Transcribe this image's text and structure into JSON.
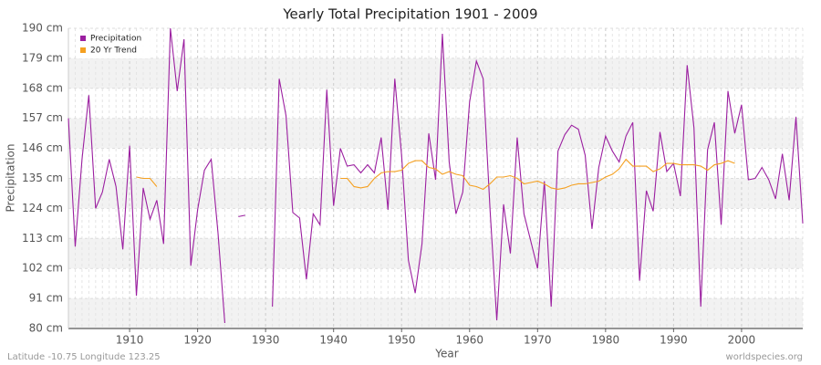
{
  "chart_data": {
    "type": "line",
    "title": "Yearly Total Precipitation 1901 - 2009",
    "x_label": "Year",
    "y_label": "Precipitation",
    "annotations": [
      "Latitude -10.75 Longitude 123.25",
      "worldspecies.org"
    ],
    "legend": "top-left",
    "grid": true,
    "xlim": [
      1901,
      2009
    ],
    "xticks": [
      1910,
      1920,
      1930,
      1940,
      1950,
      1960,
      1970,
      1980,
      1990,
      2000
    ],
    "ylim": [
      80,
      190
    ],
    "yticks": [
      {
        "value": 80,
        "label": "80 cm"
      },
      {
        "value": 91,
        "label": "91 cm"
      },
      {
        "value": 102,
        "label": "102 cm"
      },
      {
        "value": 113,
        "label": "113 cm"
      },
      {
        "value": 124,
        "label": "124 cm"
      },
      {
        "value": 135,
        "label": "135 cm"
      },
      {
        "value": 146,
        "label": "146 cm"
      },
      {
        "value": 157,
        "label": "157 cm"
      },
      {
        "value": 168,
        "label": "168 cm"
      },
      {
        "value": 179,
        "label": "179 cm"
      },
      {
        "value": 190,
        "label": "190 cm"
      }
    ],
    "x": [
      1901,
      1902,
      1903,
      1904,
      1905,
      1906,
      1907,
      1908,
      1909,
      1910,
      1911,
      1912,
      1913,
      1914,
      1915,
      1916,
      1917,
      1918,
      1919,
      1920,
      1921,
      1922,
      1923,
      1924,
      1925,
      1926,
      1927,
      1928,
      1929,
      1930,
      1931,
      1932,
      1933,
      1934,
      1935,
      1936,
      1937,
      1938,
      1939,
      1940,
      1941,
      1942,
      1943,
      1944,
      1945,
      1946,
      1947,
      1948,
      1949,
      1950,
      1951,
      1952,
      1953,
      1954,
      1955,
      1956,
      1957,
      1958,
      1959,
      1960,
      1961,
      1962,
      1963,
      1964,
      1965,
      1966,
      1967,
      1968,
      1969,
      1970,
      1971,
      1972,
      1973,
      1974,
      1975,
      1976,
      1977,
      1978,
      1979,
      1980,
      1981,
      1982,
      1983,
      1984,
      1985,
      1986,
      1987,
      1988,
      1989,
      1990,
      1991,
      1992,
      1993,
      1994,
      1995,
      1996,
      1997,
      1998,
      1999,
      2000,
      2001,
      2002,
      2003,
      2004,
      2005,
      2006,
      2007,
      2008,
      2009
    ],
    "series": [
      {
        "name": "Precipitation",
        "color": "#9b1fa0",
        "values": [
          157,
          110,
          142,
          165.5,
          124,
          130,
          142,
          132,
          109,
          147,
          92,
          131.5,
          120,
          127,
          111,
          190,
          167,
          186,
          103,
          123.5,
          138,
          142,
          115,
          82,
          null,
          121,
          121.5,
          null,
          null,
          null,
          88,
          171.5,
          158,
          122.5,
          120.5,
          98,
          122,
          118,
          167.5,
          125,
          146,
          139.5,
          140,
          137,
          140,
          137,
          150,
          123.5,
          171.5,
          143.5,
          105,
          93,
          111,
          151.5,
          134.5,
          188,
          141,
          122,
          130,
          163,
          178,
          171.5,
          124,
          83,
          125.5,
          107.5,
          150,
          122,
          112,
          102,
          134,
          88,
          145,
          151,
          154.5,
          153,
          143.5,
          116.5,
          139,
          150.5,
          145,
          141,
          150.5,
          155.5,
          97.5,
          130.5,
          123,
          152,
          137.5,
          140.5,
          128.5,
          176.5,
          153.5,
          88,
          145.5,
          155.5,
          118,
          167,
          151.5,
          162,
          134.5,
          135,
          139,
          134.5,
          127.5,
          144,
          127,
          157.5,
          118.5
        ]
      },
      {
        "name": "20 Yr Trend",
        "color": "#f5a020",
        "values": [
          null,
          null,
          null,
          null,
          null,
          null,
          null,
          null,
          null,
          null,
          135.5,
          135,
          135,
          132,
          null,
          null,
          null,
          null,
          null,
          null,
          null,
          null,
          null,
          null,
          null,
          null,
          null,
          null,
          null,
          null,
          null,
          null,
          null,
          null,
          null,
          null,
          null,
          null,
          null,
          null,
          135,
          135,
          132,
          131.5,
          132,
          135,
          137,
          137.5,
          137.5,
          138,
          140.5,
          141.5,
          141.5,
          139,
          138.5,
          136.5,
          137.5,
          136.5,
          136,
          132.5,
          132,
          131,
          133,
          135.5,
          135.5,
          136,
          135,
          133,
          133.5,
          134,
          133,
          131.5,
          131,
          131.5,
          132.5,
          133,
          133,
          133.5,
          134,
          135.5,
          136.5,
          138.5,
          142,
          139.5,
          139.5,
          139.5,
          137.5,
          138.5,
          140.5,
          140.5,
          140,
          140,
          140,
          139.5,
          138,
          140,
          140.5,
          141.5,
          140.5,
          null,
          null,
          null,
          null,
          null,
          null,
          null,
          null,
          null,
          null
        ]
      }
    ]
  }
}
